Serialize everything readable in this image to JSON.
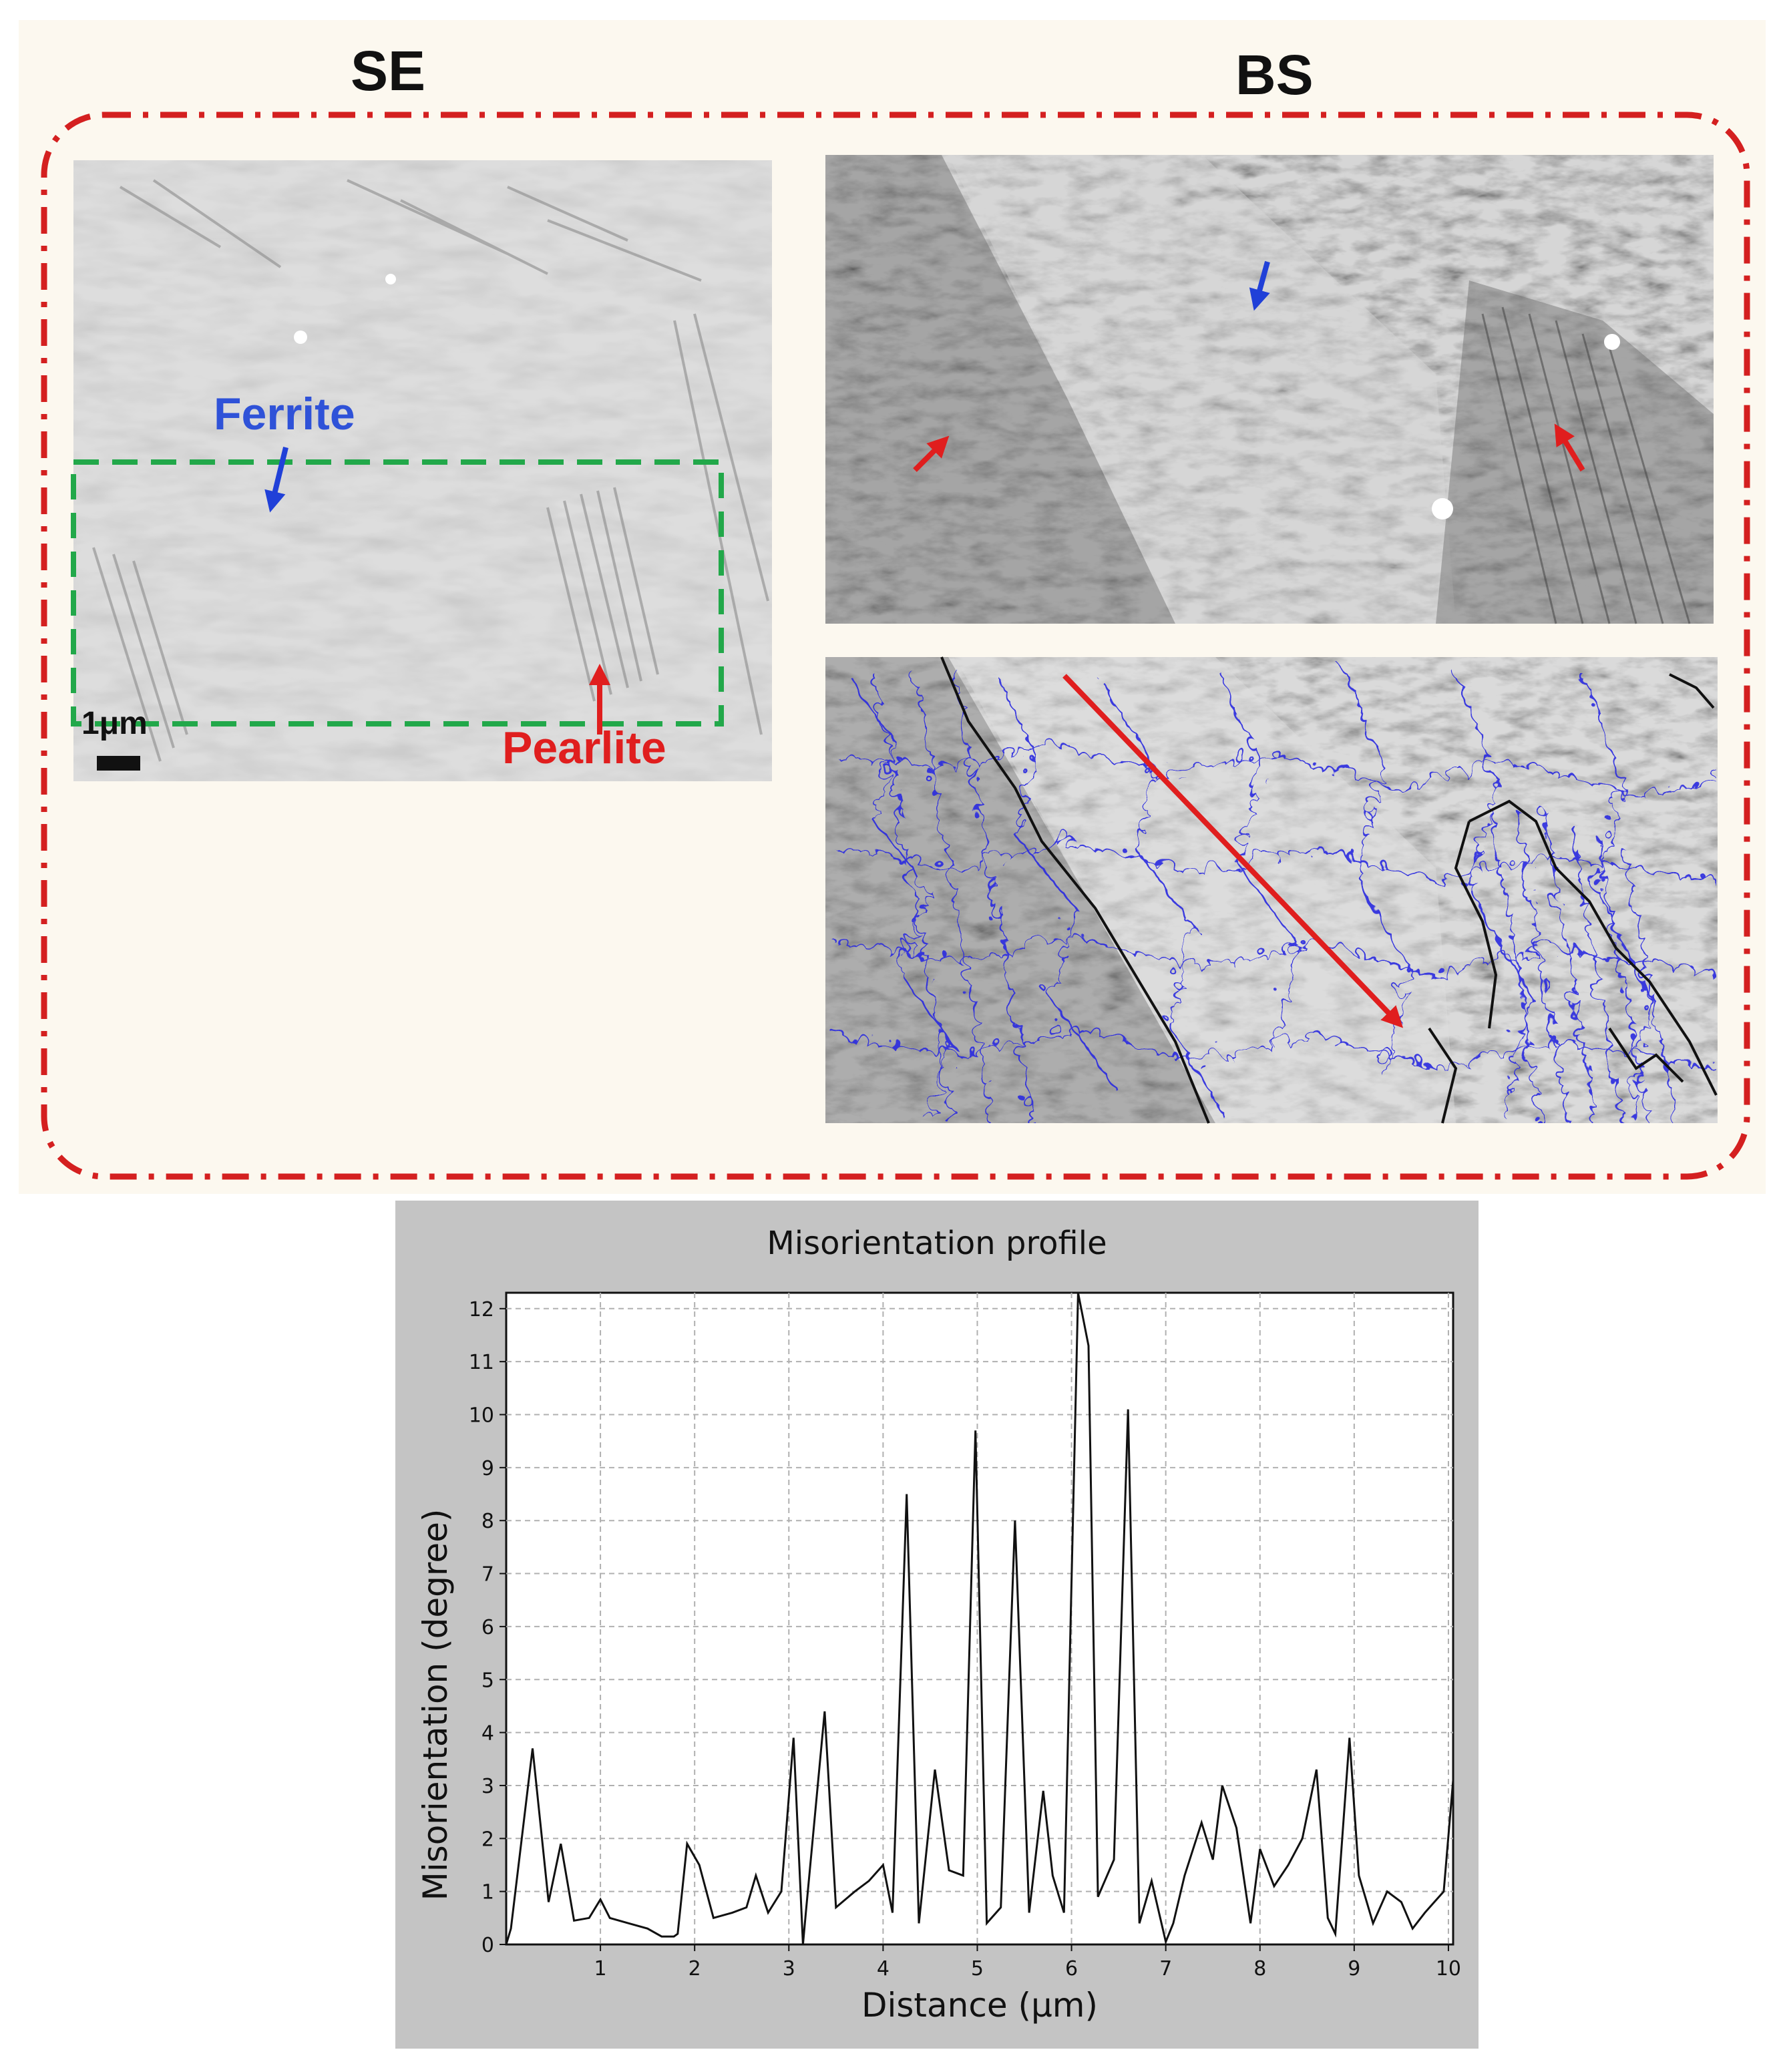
{
  "figure": {
    "se_label": "SE",
    "bs_label": "BS",
    "ferrite_label": "Ferrite",
    "pearlite_label": "Pearlite",
    "scalebar_label": "1μm",
    "colors": {
      "frame_border": "#d42020",
      "roi_border": "#22a84a",
      "ferrite_text": "#2f52d8",
      "pearlite_text": "#e01e1e",
      "arrow_red": "#e01e1e",
      "arrow_blue": "#2040d8",
      "grain_boundary_low": "#2a2ae0",
      "grain_boundary_high": "#111111"
    }
  },
  "chart_data": {
    "type": "line",
    "title": "Misorientation profile",
    "xlabel": "Distance (μm)",
    "ylabel": "Misorientation (degree)",
    "xlim": [
      0,
      10.05
    ],
    "ylim": [
      0,
      12.3
    ],
    "xticks": [
      1,
      2,
      3,
      4,
      5,
      6,
      7,
      8,
      9,
      10
    ],
    "yticks": [
      0,
      1,
      2,
      3,
      4,
      5,
      6,
      7,
      8,
      9,
      10,
      11,
      12
    ],
    "grid": true,
    "series": [
      {
        "color": "#111111",
        "x": [
          0.0,
          0.05,
          0.28,
          0.45,
          0.58,
          0.72,
          0.88,
          1.0,
          1.1,
          1.3,
          1.5,
          1.65,
          1.78,
          1.82,
          1.92,
          2.05,
          2.2,
          2.4,
          2.55,
          2.65,
          2.78,
          2.92,
          3.05,
          3.15,
          3.18,
          3.28,
          3.38,
          3.5,
          3.7,
          3.85,
          4.0,
          4.1,
          4.25,
          4.38,
          4.55,
          4.7,
          4.85,
          4.98,
          5.1,
          5.25,
          5.4,
          5.55,
          5.7,
          5.8,
          5.92,
          6.07,
          6.18,
          6.28,
          6.45,
          6.6,
          6.72,
          6.85,
          7.0,
          7.08,
          7.2,
          7.38,
          7.5,
          7.6,
          7.75,
          7.9,
          8.0,
          8.15,
          8.3,
          8.45,
          8.6,
          8.72,
          8.8,
          8.95,
          9.05,
          9.2,
          9.35,
          9.5,
          9.62,
          9.75,
          9.85,
          9.95,
          10.05
        ],
        "y": [
          0.0,
          0.3,
          3.7,
          0.8,
          1.9,
          0.45,
          0.5,
          0.85,
          0.5,
          0.4,
          0.3,
          0.15,
          0.15,
          0.2,
          1.9,
          1.5,
          0.5,
          0.6,
          0.7,
          1.3,
          0.6,
          1.0,
          3.9,
          0.0,
          0.6,
          2.5,
          4.4,
          0.7,
          1.0,
          1.2,
          1.5,
          0.6,
          8.5,
          0.4,
          3.3,
          1.4,
          1.3,
          9.7,
          0.4,
          0.7,
          8.0,
          0.6,
          2.9,
          1.3,
          0.6,
          12.3,
          11.3,
          0.9,
          1.6,
          10.1,
          0.4,
          1.2,
          0.05,
          0.4,
          1.3,
          2.3,
          1.6,
          3.0,
          2.2,
          0.4,
          1.8,
          1.1,
          1.5,
          2.0,
          3.3,
          0.5,
          0.2,
          3.9,
          1.3,
          0.4,
          1.0,
          0.8,
          0.3,
          0.6,
          0.8,
          1.0,
          3.1
        ]
      }
    ]
  }
}
